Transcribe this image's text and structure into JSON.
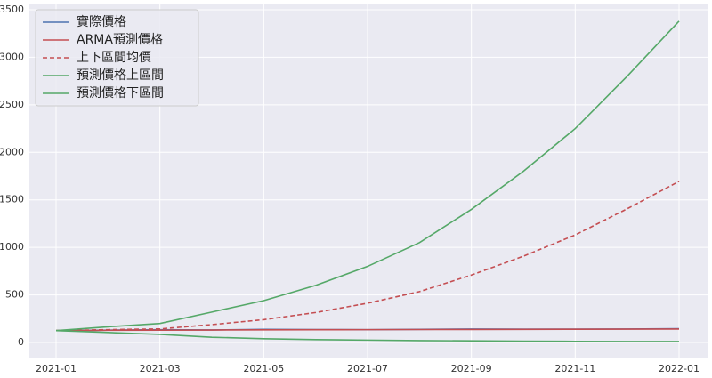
{
  "chart_data": {
    "type": "line",
    "x": [
      "2021-01",
      "2021-02",
      "2021-03",
      "2021-04",
      "2021-05",
      "2021-06",
      "2021-07",
      "2021-08",
      "2021-09",
      "2021-10",
      "2021-11",
      "2021-12",
      "2022-01"
    ],
    "series": [
      {
        "name": "實際價格",
        "color": "#4c72b0",
        "linestyle": "solid",
        "values": [
          125,
          130,
          135,
          132,
          138,
          136,
          135,
          138,
          142,
          140,
          140,
          142,
          145
        ]
      },
      {
        "name": "ARMA預測價格",
        "color": "#c44e52",
        "linestyle": "solid",
        "values": [
          125,
          128,
          130,
          131,
          133,
          134,
          135,
          136,
          137,
          138,
          139,
          140,
          141
        ]
      },
      {
        "name": "上下區間均價",
        "color": "#c44e52",
        "linestyle": "dashed",
        "values": [
          125,
          135,
          143,
          188,
          240,
          315,
          413,
          535,
          709,
          907,
          1131,
          1406,
          1695
        ]
      },
      {
        "name": "預測價格上區間",
        "color": "#55a868",
        "linestyle": "solid",
        "values": [
          125,
          165,
          200,
          320,
          440,
          600,
          800,
          1050,
          1400,
          1800,
          2250,
          2800,
          3380
        ]
      },
      {
        "name": "預測價格下區間",
        "color": "#55a868",
        "linestyle": "solid",
        "values": [
          125,
          105,
          85,
          55,
          40,
          30,
          25,
          20,
          17,
          14,
          12,
          11,
          10
        ]
      }
    ],
    "xticks": [
      "2021-01",
      "2021-03",
      "2021-05",
      "2021-07",
      "2021-09",
      "2021-11",
      "2022-01"
    ],
    "ylim": [
      -168,
      3556
    ],
    "yticks": [
      0,
      500,
      1000,
      1500,
      2000,
      2500,
      3000,
      3500
    ],
    "grid": true,
    "legend": "upper-left"
  }
}
